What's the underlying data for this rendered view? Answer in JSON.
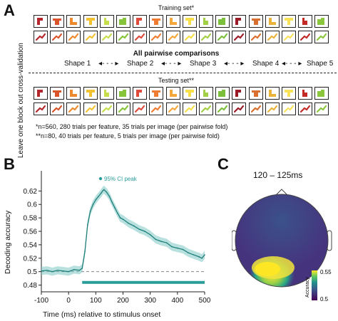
{
  "panelA": {
    "letter": "A",
    "vertical_label": "Leave one block out cross-validation",
    "training_title": "Training set*",
    "pairwise_title": "All pairwise comparisons",
    "testing_title": "Testing set**",
    "shapes": [
      "Shape 1",
      "Shape 2",
      "Shape 3",
      "Shape 4",
      "Shape 5"
    ],
    "note1": "*n=560, 280 trials per feature, 35 trials per image (per pairwise fold)",
    "note2": "**n=80, 40 trials per feature, 5 trials per image (per pairwise fold)",
    "tile_colors": [
      "#b3262b",
      "#d9532b",
      "#ee8a2e",
      "#f2c233",
      "#c8dd4a",
      "#86c43a",
      "#e04a3a",
      "#f07b33",
      "#f4a83c",
      "#f7df49",
      "#a3cf45",
      "#7bbf3a",
      "#9b1c26",
      "#d96e2e",
      "#eab43a",
      "#f9e25a",
      "#c32a26",
      "#8bc63c"
    ]
  },
  "panelB": {
    "letter": "B",
    "legend_label": "95% CI peak",
    "xlabel": "Time (ms) relative to stimulus onset",
    "ylabel": "Decoding accuracy"
  },
  "panelC": {
    "letter": "C",
    "title": "120 – 125ms",
    "colorbar_label": "Accuracy",
    "colorbar_max": "0.55",
    "colorbar_min": "0.5"
  },
  "chart_data": {
    "type": "line",
    "xlabel": "Time (ms) relative to stimulus onset",
    "ylabel": "Decoding accuracy",
    "xlim": [
      -100,
      500
    ],
    "ylim": [
      0.47,
      0.65
    ],
    "xticks": [
      -100,
      0,
      100,
      200,
      300,
      400,
      500
    ],
    "yticks": [
      0.48,
      0.5,
      0.52,
      0.54,
      0.56,
      0.58,
      0.6,
      0.62
    ],
    "ytick_labels": [
      "0.48",
      "0.5",
      "0.52",
      "0.54",
      "0.56",
      "0.58",
      "0.6",
      "0.62"
    ],
    "chance_level": 0.5,
    "x": [
      -100,
      -80,
      -60,
      -40,
      -20,
      0,
      20,
      40,
      50,
      60,
      70,
      80,
      90,
      100,
      110,
      120,
      125,
      130,
      140,
      150,
      160,
      170,
      180,
      190,
      200,
      220,
      240,
      260,
      280,
      300,
      320,
      340,
      360,
      380,
      400,
      420,
      440,
      460,
      480,
      490,
      500
    ],
    "y": [
      0.501,
      0.502,
      0.5,
      0.502,
      0.501,
      0.5,
      0.503,
      0.502,
      0.505,
      0.53,
      0.57,
      0.59,
      0.6,
      0.607,
      0.612,
      0.617,
      0.62,
      0.622,
      0.618,
      0.612,
      0.603,
      0.595,
      0.587,
      0.58,
      0.578,
      0.572,
      0.568,
      0.563,
      0.56,
      0.555,
      0.548,
      0.545,
      0.543,
      0.537,
      0.535,
      0.533,
      0.528,
      0.525,
      0.522,
      0.52,
      0.525
    ],
    "ci_halfwidth": 0.006,
    "significance_window": [
      50,
      500
    ],
    "significance_y": 0.484,
    "annotations": [
      "95% CI peak"
    ]
  }
}
